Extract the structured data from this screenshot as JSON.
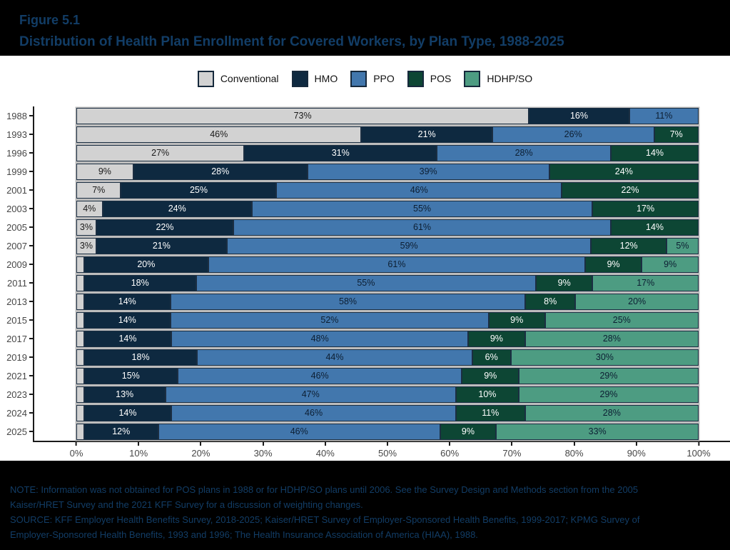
{
  "header": {
    "figure_label": "Figure 5.1",
    "title": "Distribution of Health Plan Enrollment for Covered Workers, by Plan Type, 1988-2025"
  },
  "legend": {
    "items": [
      {
        "key": "conventional",
        "label": "Conventional",
        "color": "#d2d2d2"
      },
      {
        "key": "hmo",
        "label": "HMO",
        "color": "#0e2940"
      },
      {
        "key": "ppo",
        "label": "PPO",
        "color": "#4277ad"
      },
      {
        "key": "pos",
        "label": "POS",
        "color": "#0d4634"
      },
      {
        "key": "hdhp-so",
        "label": "HDHP/SO",
        "color": "#4d9c82"
      }
    ]
  },
  "chart_data": {
    "type": "bar",
    "stacked": true,
    "orientation": "horizontal",
    "title": "Distribution of Health Plan Enrollment for Covered Workers, by Plan Type, 1988-2025",
    "xlabel": "",
    "ylabel": "",
    "xlim": [
      0,
      100
    ],
    "grid": false,
    "legend_position": "top-center",
    "x_ticks": [
      "0%",
      "10%",
      "20%",
      "30%",
      "40%",
      "50%",
      "60%",
      "70%",
      "80%",
      "90%",
      "100%"
    ],
    "categories": [
      "1988",
      "1993",
      "1996",
      "1999",
      "2001",
      "2003",
      "2005",
      "2007",
      "2009",
      "2011",
      "2013",
      "2015",
      "2017",
      "2019",
      "2021",
      "2023",
      "2024",
      "2025"
    ],
    "series": [
      {
        "name": "Conventional",
        "color": "#d2d2d2",
        "label_color": "#1a1a1a",
        "values": [
          73,
          46,
          27,
          9,
          7,
          4,
          3,
          3,
          1,
          1,
          1,
          1,
          1,
          1,
          1,
          1,
          1,
          1
        ],
        "labels": [
          "73%",
          "46%",
          "27%",
          "9%",
          "7%",
          "4%",
          "3%",
          "3%",
          "",
          "",
          "",
          "",
          "",
          "",
          "",
          "",
          "",
          ""
        ]
      },
      {
        "name": "HMO",
        "color": "#0e2940",
        "label_color": "#ffffff",
        "values": [
          16,
          21,
          31,
          28,
          25,
          24,
          22,
          21,
          20,
          18,
          14,
          14,
          14,
          18,
          15,
          13,
          14,
          12
        ],
        "labels": [
          "16%",
          "21%",
          "31%",
          "28%",
          "25%",
          "24%",
          "22%",
          "21%",
          "20%",
          "18%",
          "14%",
          "14%",
          "14%",
          "18%",
          "15%",
          "13%",
          "14%",
          "12%"
        ]
      },
      {
        "name": "PPO",
        "color": "#4277ad",
        "label_color": "#0d1f33",
        "values": [
          11,
          26,
          28,
          39,
          46,
          55,
          61,
          59,
          61,
          55,
          58,
          52,
          48,
          44,
          46,
          47,
          46,
          46
        ],
        "labels": [
          "11%",
          "26%",
          "28%",
          "39%",
          "46%",
          "55%",
          "61%",
          "59%",
          "61%",
          "55%",
          "58%",
          "52%",
          "48%",
          "44%",
          "46%",
          "47%",
          "46%",
          "46%"
        ]
      },
      {
        "name": "POS",
        "color": "#0d4634",
        "label_color": "#ffffff",
        "values": [
          null,
          7,
          14,
          24,
          22,
          17,
          14,
          12,
          9,
          9,
          8,
          9,
          9,
          6,
          9,
          10,
          11,
          9
        ],
        "labels": [
          "",
          "7%",
          "14%",
          "24%",
          "22%",
          "17%",
          "14%",
          "12%",
          "9%",
          "9%",
          "8%",
          "9%",
          "9%",
          "6%",
          "9%",
          "10%",
          "11%",
          "9%"
        ]
      },
      {
        "name": "HDHP/SO",
        "color": "#4d9c82",
        "label_color": "#0d1f33",
        "values": [
          null,
          null,
          null,
          null,
          null,
          null,
          null,
          5,
          9,
          17,
          20,
          25,
          28,
          30,
          29,
          29,
          28,
          33
        ],
        "labels": [
          "",
          "",
          "",
          "",
          "",
          "",
          "",
          "5%",
          "9%",
          "17%",
          "20%",
          "25%",
          "28%",
          "30%",
          "29%",
          "29%",
          "28%",
          "33%"
        ]
      }
    ]
  },
  "footer": {
    "lines": [
      "NOTE: Information was not obtained for POS plans in 1988 or for HDHP/SO plans until 2006. See the Survey Design and Methods section from the 2005",
      "Kaiser/HRET Survey and the 2021 KFF Survey for a discussion of weighting changes.",
      "SOURCE: KFF Employer Health Benefits Survey, 2018-2025; Kaiser/HRET Survey of Employer-Sponsored Health Benefits, 1999-2017; KPMG Survey of",
      "Employer-Sponsored Health Benefits, 1993 and 1996; The Health Insurance Association of America (HIAA), 1988."
    ]
  }
}
